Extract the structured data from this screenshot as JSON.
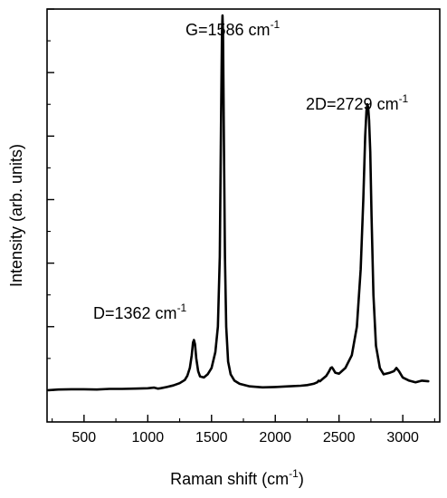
{
  "chart_data": {
    "type": "line",
    "title": "",
    "xlabel": {
      "main": "Raman shift (cm",
      "sup": "-1",
      "end": ")"
    },
    "ylabel": "Intensity (arb. units)",
    "xlim": [
      210,
      3290
    ],
    "ylim": [
      -0.1,
      1.2
    ],
    "x_ticks": [
      500,
      1000,
      1500,
      2000,
      2500,
      3000
    ],
    "x_minor_ticks": [
      250,
      750,
      1250,
      1750,
      2250,
      2750,
      3250
    ],
    "y_ticks_show_labels": false,
    "series": [
      {
        "color": "#000000",
        "x": [
          220,
          300,
          400,
          500,
          600,
          700,
          800,
          900,
          1000,
          1050,
          1080,
          1100,
          1150,
          1200,
          1250,
          1290,
          1310,
          1330,
          1345,
          1355,
          1362,
          1370,
          1380,
          1395,
          1410,
          1440,
          1470,
          1500,
          1530,
          1550,
          1565,
          1575,
          1582,
          1586,
          1590,
          1597,
          1605,
          1615,
          1630,
          1650,
          1680,
          1720,
          1800,
          1900,
          2000,
          2100,
          2200,
          2250,
          2300,
          2330,
          2340,
          2350,
          2370,
          2400,
          2420,
          2435,
          2445,
          2455,
          2470,
          2500,
          2550,
          2600,
          2640,
          2670,
          2690,
          2705,
          2715,
          2722,
          2729,
          2736,
          2745,
          2755,
          2770,
          2790,
          2820,
          2850,
          2900,
          2930,
          2950,
          2970,
          3000,
          3050,
          3100,
          3150,
          3200
        ],
        "y": [
          0.0,
          0.002,
          0.003,
          0.003,
          0.002,
          0.004,
          0.004,
          0.005,
          0.006,
          0.008,
          0.005,
          0.006,
          0.01,
          0.015,
          0.022,
          0.032,
          0.045,
          0.07,
          0.11,
          0.15,
          0.158,
          0.145,
          0.1,
          0.06,
          0.043,
          0.04,
          0.05,
          0.07,
          0.12,
          0.2,
          0.42,
          0.85,
          1.12,
          1.18,
          1.12,
          0.8,
          0.42,
          0.2,
          0.09,
          0.05,
          0.03,
          0.02,
          0.012,
          0.009,
          0.01,
          0.012,
          0.014,
          0.016,
          0.02,
          0.025,
          0.03,
          0.028,
          0.035,
          0.045,
          0.058,
          0.07,
          0.072,
          0.066,
          0.055,
          0.052,
          0.07,
          0.11,
          0.2,
          0.38,
          0.6,
          0.8,
          0.88,
          0.9,
          0.89,
          0.85,
          0.75,
          0.55,
          0.3,
          0.14,
          0.07,
          0.05,
          0.055,
          0.06,
          0.07,
          0.06,
          0.04,
          0.03,
          0.025,
          0.03,
          0.028
        ]
      }
    ],
    "annotations": [
      {
        "main": "D=1362 cm",
        "sup": "-1"
      },
      {
        "main": "G=1586 cm",
        "sup": "-1"
      },
      {
        "main": "2D=2729 cm",
        "sup": "-1"
      }
    ],
    "grid": false,
    "legend": "none"
  }
}
